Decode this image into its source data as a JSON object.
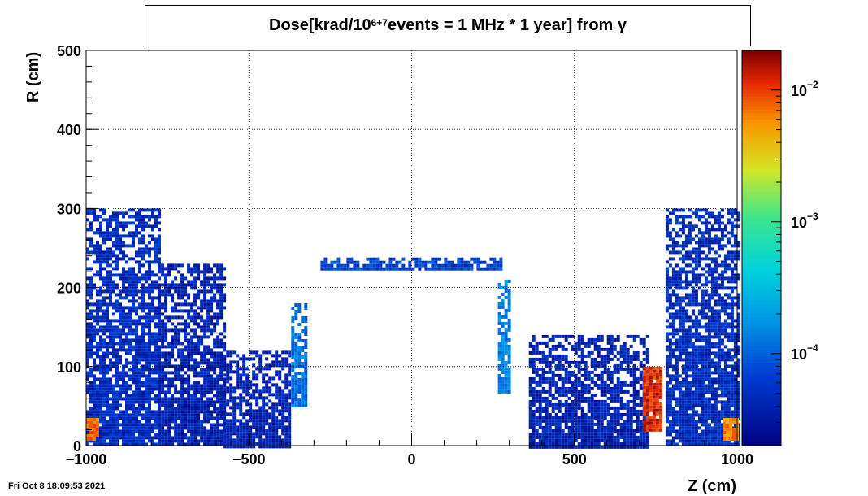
{
  "footer_timestamp": "Fri Oct  8 18:09:53 2021",
  "chart_data": {
    "type": "heatmap",
    "title_parts": {
      "pre": "Dose[krad/10",
      "sup": "6+7",
      "post": " events = 1 MHz * 1 year] from γ"
    },
    "xlabel": "Z (cm)",
    "ylabel": "R (cm)",
    "xlim": [
      -1000,
      1000
    ],
    "ylim": [
      0,
      500
    ],
    "x_ticks": [
      -1000,
      -500,
      0,
      500,
      1000
    ],
    "y_ticks": [
      0,
      100,
      200,
      300,
      400,
      500
    ],
    "x_tick_labels": [
      "−1000",
      "−500",
      "0",
      "500",
      "1000"
    ],
    "y_tick_labels": [
      "0",
      "100",
      "200",
      "300",
      "400",
      "500"
    ],
    "grid": true,
    "z_scale": "log",
    "zlim": [
      2e-05,
      0.02
    ],
    "colorbar_ticks": [
      {
        "value": 0.01,
        "mantissa": "10",
        "exponent": "−2"
      },
      {
        "value": 0.001,
        "mantissa": "10",
        "exponent": "−3"
      },
      {
        "value": 0.0001,
        "mantissa": "10",
        "exponent": "−4"
      }
    ],
    "regions": [
      {
        "name": "left-endcap-cloud",
        "z": [
          -1000,
          -780
        ],
        "r": [
          0,
          300
        ],
        "dose": 5e-05
      },
      {
        "name": "left-slope",
        "z": [
          -780,
          -580
        ],
        "r": [
          0,
          230
        ],
        "dose": 4e-05
      },
      {
        "name": "left-inner",
        "z": [
          -580,
          -380
        ],
        "r": [
          0,
          120
        ],
        "dose": 4e-05
      },
      {
        "name": "left-spike",
        "z": [
          -370,
          -330
        ],
        "r": [
          50,
          180
        ],
        "dose": 0.00012
      },
      {
        "name": "barrel-shell",
        "z": [
          -280,
          270
        ],
        "r": [
          225,
          238
        ],
        "dose": 7e-05
      },
      {
        "name": "right-spike",
        "z": [
          265,
          295
        ],
        "r": [
          70,
          210
        ],
        "dose": 0.00015
      },
      {
        "name": "right-inner",
        "z": [
          360,
          720
        ],
        "r": [
          0,
          140
        ],
        "dose": 4e-05
      },
      {
        "name": "right-endcap-cloud",
        "z": [
          780,
          1000
        ],
        "r": [
          0,
          300
        ],
        "dose": 5e-05
      },
      {
        "name": "right-hotspot",
        "z": [
          710,
          760
        ],
        "r": [
          20,
          100
        ],
        "dose": 0.012
      },
      {
        "name": "left-corner-hot",
        "z": [
          -1000,
          -970
        ],
        "r": [
          10,
          35
        ],
        "dose": 0.008
      },
      {
        "name": "right-corner-hot",
        "z": [
          955,
          1000
        ],
        "r": [
          10,
          35
        ],
        "dose": 0.006
      }
    ]
  }
}
